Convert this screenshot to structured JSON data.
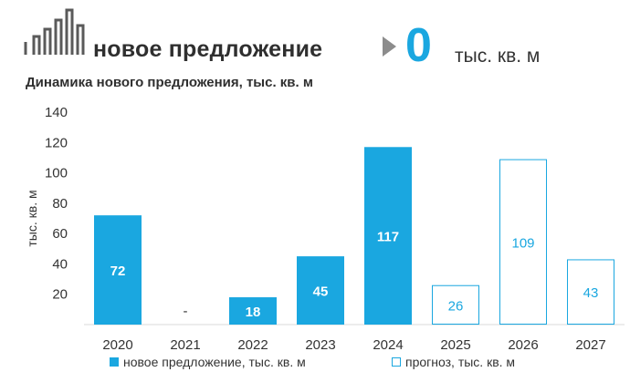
{
  "header": {
    "title": "новое предложение",
    "big_value": "0",
    "unit": "тыс. кв. м"
  },
  "colors": {
    "accent": "#1aa7e0",
    "title_text": "#2f2f2f",
    "arrow": "#8c8c8c",
    "logo": "#5a5a5a"
  },
  "icons": {
    "logo": "bar-chart-logo-icon",
    "arrow": "triangle-right-icon"
  },
  "chart_data": {
    "type": "bar",
    "title": "Динамика нового предложения, тыс. кв. м",
    "ylabel": "тыс. кв. м",
    "ylim": [
      0,
      140
    ],
    "yticks": [
      20,
      40,
      60,
      80,
      100,
      120,
      140
    ],
    "yticklabels": [
      "20",
      "40",
      "60",
      "80",
      "100",
      "120",
      "140"
    ],
    "grid": false,
    "legend_position": "bottom",
    "categories": [
      "2020",
      "2021",
      "2022",
      "2023",
      "2024",
      "2025",
      "2026",
      "2027"
    ],
    "series": [
      {
        "name": "новое предложение, тыс. кв. м",
        "style": "filled",
        "values": [
          72,
          null,
          18,
          45,
          117,
          null,
          null,
          null
        ],
        "labels": [
          "72",
          "-",
          "18",
          "45",
          "117",
          "",
          "",
          ""
        ]
      },
      {
        "name": "прогноз, тыс. кв. м",
        "style": "outline",
        "values": [
          null,
          null,
          null,
          null,
          null,
          26,
          109,
          43
        ],
        "labels": [
          "",
          "",
          "",
          "",
          "",
          "26",
          "109",
          "43"
        ]
      }
    ]
  }
}
